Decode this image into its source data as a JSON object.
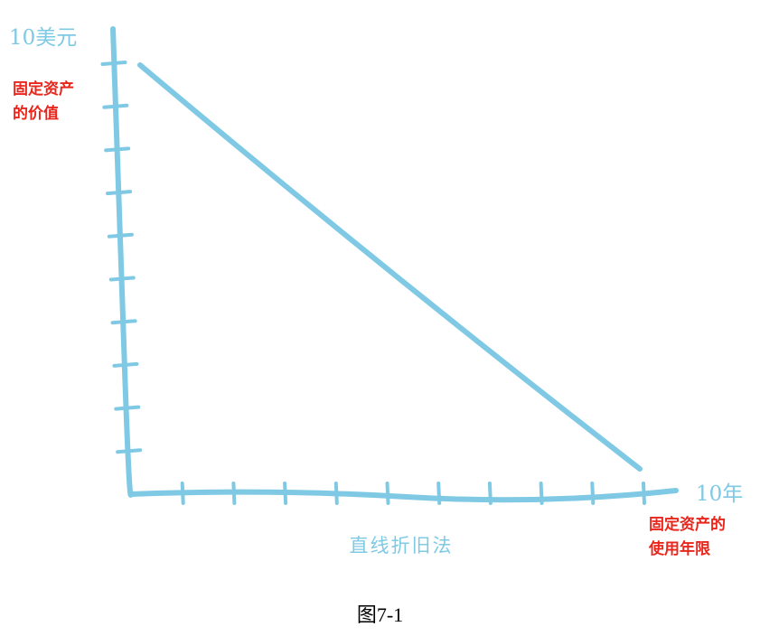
{
  "chart_data": {
    "type": "line",
    "title": "直线折旧法",
    "x": [
      0,
      10
    ],
    "y": [
      10,
      0
    ],
    "xlim": [
      0,
      10
    ],
    "ylim": [
      0,
      10
    ],
    "x_end_label": "10年",
    "y_end_label": "10美元",
    "xlabel": "固定资产的使用年限",
    "ylabel": "固定资产的价值",
    "x_ticks": 10,
    "y_ticks": 10,
    "grid": false,
    "legend": "none"
  },
  "labels": {
    "y_desc_line1": "固定资产",
    "y_desc_line2": "的价值",
    "x_desc_line1": "固定资产的",
    "x_desc_line2": "使用年限",
    "caption": "图7-1"
  },
  "colors": {
    "line": "#7fc9e4",
    "annotation": "#e8261c",
    "caption": "#000000"
  }
}
